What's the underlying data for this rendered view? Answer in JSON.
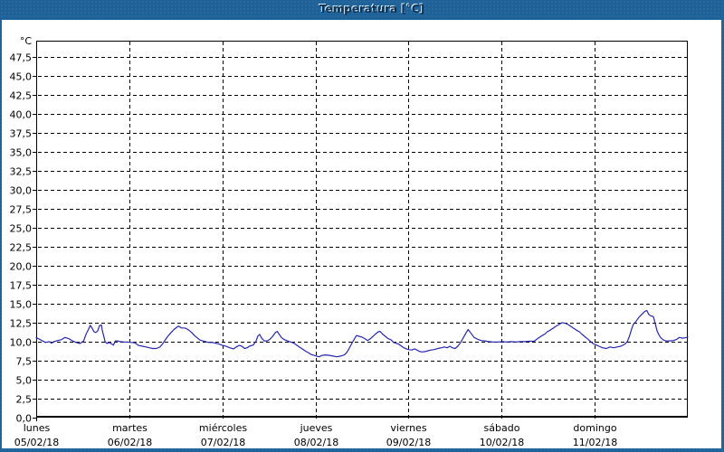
{
  "window": {
    "title": "Temperatura [°C]"
  },
  "colors": {
    "frame_blue": "#1e6299",
    "title_text": "#0c3254",
    "title_highlight": "#dcecf8",
    "content_bg": "#ffffff",
    "axis": "#000000",
    "grid": "#000000",
    "series_line": "#2626ac",
    "label_text": "#000000"
  },
  "chart_data": {
    "type": "line",
    "title": "Temperatura [°C]",
    "ylabel": "°C",
    "ylim": [
      0,
      49.6
    ],
    "y_tick_interval": 2.5,
    "grid": "dashed",
    "legend": "none",
    "y_ticks": [
      {
        "v": 0.0,
        "label": "0,0"
      },
      {
        "v": 2.5,
        "label": "2,5"
      },
      {
        "v": 5.0,
        "label": "5,0"
      },
      {
        "v": 7.5,
        "label": "7,5"
      },
      {
        "v": 10.0,
        "label": "10,0"
      },
      {
        "v": 12.5,
        "label": "12,5"
      },
      {
        "v": 15.0,
        "label": "15,0"
      },
      {
        "v": 17.5,
        "label": "17,5"
      },
      {
        "v": 20.0,
        "label": "20,0"
      },
      {
        "v": 22.5,
        "label": "22,5"
      },
      {
        "v": 25.0,
        "label": "25,0"
      },
      {
        "v": 27.5,
        "label": "27,5"
      },
      {
        "v": 30.0,
        "label": "30,0"
      },
      {
        "v": 32.5,
        "label": "32,5"
      },
      {
        "v": 35.0,
        "label": "35,0"
      },
      {
        "v": 37.5,
        "label": "37,5"
      },
      {
        "v": 40.0,
        "label": "40,0"
      },
      {
        "v": 42.5,
        "label": "42,5"
      },
      {
        "v": 45.0,
        "label": "45,0"
      },
      {
        "v": 47.5,
        "label": "47,5"
      }
    ],
    "x_days": [
      {
        "name": "lunes",
        "date": "05/02/18"
      },
      {
        "name": "martes",
        "date": "06/02/18"
      },
      {
        "name": "miércoles",
        "date": "07/02/18"
      },
      {
        "name": "jueves",
        "date": "08/02/18"
      },
      {
        "name": "viernes",
        "date": "09/02/18"
      },
      {
        "name": "sábado",
        "date": "10/02/18"
      },
      {
        "name": "domingo",
        "date": "11/02/18"
      }
    ],
    "series": [
      {
        "name": "Temperatura",
        "color": "#2626ac",
        "unit": "°C",
        "points": [
          [
            0,
            10.55
          ],
          [
            0.03,
            10.35
          ],
          [
            0.06,
            10.15
          ],
          [
            0.1,
            9.9
          ],
          [
            0.14,
            10.0
          ],
          [
            0.165,
            9.8
          ],
          [
            0.19,
            10.0
          ],
          [
            0.23,
            10.15
          ],
          [
            0.27,
            10.25
          ],
          [
            0.31,
            10.55
          ],
          [
            0.35,
            10.4
          ],
          [
            0.39,
            10.1
          ],
          [
            0.43,
            9.9
          ],
          [
            0.47,
            9.75
          ],
          [
            0.51,
            10.1
          ],
          [
            0.535,
            10.95
          ],
          [
            0.565,
            11.7
          ],
          [
            0.58,
            12.15
          ],
          [
            0.6,
            11.8
          ],
          [
            0.62,
            11.3
          ],
          [
            0.64,
            11.2
          ],
          [
            0.66,
            11.4
          ],
          [
            0.68,
            12.1
          ],
          [
            0.7,
            12.2
          ],
          [
            0.71,
            11.5
          ],
          [
            0.73,
            10.5
          ],
          [
            0.74,
            10.0
          ],
          [
            0.76,
            9.75
          ],
          [
            0.78,
            9.9
          ],
          [
            0.81,
            9.7
          ],
          [
            0.83,
            9.55
          ],
          [
            0.85,
            10.1
          ],
          [
            0.875,
            10.1
          ],
          [
            0.9,
            10.0
          ],
          [
            0.94,
            9.95
          ],
          [
            0.98,
            9.95
          ],
          [
            1.02,
            9.9
          ],
          [
            1.06,
            9.85
          ],
          [
            1.1,
            9.5
          ],
          [
            1.14,
            9.4
          ],
          [
            1.18,
            9.3
          ],
          [
            1.215,
            9.2
          ],
          [
            1.25,
            9.1
          ],
          [
            1.29,
            9.1
          ],
          [
            1.33,
            9.3
          ],
          [
            1.36,
            9.75
          ],
          [
            1.39,
            10.3
          ],
          [
            1.42,
            10.8
          ],
          [
            1.45,
            11.2
          ],
          [
            1.48,
            11.6
          ],
          [
            1.51,
            11.9
          ],
          [
            1.53,
            12.05
          ],
          [
            1.56,
            11.8
          ],
          [
            1.585,
            11.8
          ],
          [
            1.61,
            11.75
          ],
          [
            1.64,
            11.5
          ],
          [
            1.67,
            11.2
          ],
          [
            1.7,
            10.8
          ],
          [
            1.73,
            10.5
          ],
          [
            1.76,
            10.2
          ],
          [
            1.79,
            10.1
          ],
          [
            1.82,
            10.0
          ],
          [
            1.85,
            9.9
          ],
          [
            1.89,
            9.9
          ],
          [
            1.925,
            9.8
          ],
          [
            1.96,
            9.7
          ],
          [
            2.0,
            9.5
          ],
          [
            2.04,
            9.4
          ],
          [
            2.08,
            9.2
          ],
          [
            2.12,
            9.05
          ],
          [
            2.15,
            9.3
          ],
          [
            2.18,
            9.5
          ],
          [
            2.21,
            9.4
          ],
          [
            2.24,
            9.1
          ],
          [
            2.265,
            9.2
          ],
          [
            2.29,
            9.4
          ],
          [
            2.33,
            9.55
          ],
          [
            2.36,
            10.0
          ],
          [
            2.38,
            10.7
          ],
          [
            2.4,
            10.95
          ],
          [
            2.42,
            10.5
          ],
          [
            2.45,
            10.1
          ],
          [
            2.48,
            10.1
          ],
          [
            2.51,
            10.3
          ],
          [
            2.54,
            10.7
          ],
          [
            2.57,
            11.2
          ],
          [
            2.59,
            11.35
          ],
          [
            2.61,
            10.95
          ],
          [
            2.635,
            10.55
          ],
          [
            2.66,
            10.3
          ],
          [
            2.69,
            10.15
          ],
          [
            2.72,
            10.0
          ],
          [
            2.75,
            9.9
          ],
          [
            2.78,
            9.7
          ],
          [
            2.81,
            9.45
          ],
          [
            2.84,
            9.2
          ],
          [
            2.87,
            8.95
          ],
          [
            2.9,
            8.7
          ],
          [
            2.93,
            8.5
          ],
          [
            2.955,
            8.3
          ],
          [
            2.985,
            8.2
          ],
          [
            3.01,
            8.1
          ],
          [
            3.04,
            8.0
          ],
          [
            3.07,
            8.2
          ],
          [
            3.11,
            8.25
          ],
          [
            3.15,
            8.2
          ],
          [
            3.19,
            8.1
          ],
          [
            3.23,
            8.0
          ],
          [
            3.27,
            8.1
          ],
          [
            3.31,
            8.25
          ],
          [
            3.335,
            8.55
          ],
          [
            3.36,
            9.05
          ],
          [
            3.39,
            9.75
          ],
          [
            3.42,
            10.4
          ],
          [
            3.44,
            10.8
          ],
          [
            3.47,
            10.7
          ],
          [
            3.5,
            10.6
          ],
          [
            3.53,
            10.4
          ],
          [
            3.56,
            10.15
          ],
          [
            3.59,
            10.4
          ],
          [
            3.62,
            10.7
          ],
          [
            3.645,
            11.0
          ],
          [
            3.675,
            11.3
          ],
          [
            3.695,
            11.35
          ],
          [
            3.72,
            11.0
          ],
          [
            3.75,
            10.7
          ],
          [
            3.78,
            10.4
          ],
          [
            3.81,
            10.25
          ],
          [
            3.84,
            9.9
          ],
          [
            3.87,
            9.75
          ],
          [
            3.89,
            9.7
          ],
          [
            3.92,
            9.45
          ],
          [
            3.95,
            9.2
          ],
          [
            3.975,
            9.05
          ],
          [
            4.005,
            8.95
          ],
          [
            4.035,
            8.9
          ],
          [
            4.065,
            9.05
          ],
          [
            4.09,
            8.9
          ],
          [
            4.12,
            8.7
          ],
          [
            4.15,
            8.65
          ],
          [
            4.18,
            8.7
          ],
          [
            4.21,
            8.8
          ],
          [
            4.24,
            8.9
          ],
          [
            4.27,
            8.95
          ],
          [
            4.3,
            9.05
          ],
          [
            4.33,
            9.15
          ],
          [
            4.355,
            9.2
          ],
          [
            4.385,
            9.3
          ],
          [
            4.415,
            9.2
          ],
          [
            4.445,
            9.4
          ],
          [
            4.47,
            9.2
          ],
          [
            4.5,
            9.1
          ],
          [
            4.53,
            9.4
          ],
          [
            4.56,
            9.9
          ],
          [
            4.59,
            10.55
          ],
          [
            4.62,
            11.2
          ],
          [
            4.64,
            11.6
          ],
          [
            4.665,
            11.2
          ],
          [
            4.705,
            10.55
          ],
          [
            4.745,
            10.3
          ],
          [
            4.78,
            10.15
          ],
          [
            4.82,
            10.1
          ],
          [
            4.86,
            10.0
          ],
          [
            4.91,
            9.95
          ],
          [
            4.96,
            9.95
          ],
          [
            5.01,
            10.0
          ],
          [
            5.055,
            9.95
          ],
          [
            5.105,
            10.0
          ],
          [
            5.155,
            9.95
          ],
          [
            5.2,
            10.0
          ],
          [
            5.25,
            10.0
          ],
          [
            5.3,
            10.05
          ],
          [
            5.35,
            10.05
          ],
          [
            5.375,
            10.3
          ],
          [
            5.405,
            10.55
          ],
          [
            5.435,
            10.8
          ],
          [
            5.465,
            11.0
          ],
          [
            5.49,
            11.3
          ],
          [
            5.52,
            11.5
          ],
          [
            5.55,
            11.75
          ],
          [
            5.58,
            12.0
          ],
          [
            5.61,
            12.2
          ],
          [
            5.65,
            12.5
          ],
          [
            5.69,
            12.4
          ],
          [
            5.72,
            12.2
          ],
          [
            5.745,
            12.0
          ],
          [
            5.775,
            11.75
          ],
          [
            5.805,
            11.5
          ],
          [
            5.835,
            11.3
          ],
          [
            5.86,
            11.0
          ],
          [
            5.89,
            10.7
          ],
          [
            5.93,
            10.3
          ],
          [
            5.98,
            9.75
          ],
          [
            6.01,
            9.6
          ],
          [
            6.045,
            9.4
          ],
          [
            6.085,
            9.2
          ],
          [
            6.125,
            9.1
          ],
          [
            6.165,
            9.3
          ],
          [
            6.205,
            9.2
          ],
          [
            6.24,
            9.3
          ],
          [
            6.28,
            9.4
          ],
          [
            6.32,
            9.65
          ],
          [
            6.35,
            10.0
          ],
          [
            6.37,
            10.6
          ],
          [
            6.4,
            11.8
          ],
          [
            6.415,
            12.25
          ],
          [
            6.445,
            12.7
          ],
          [
            6.475,
            13.2
          ],
          [
            6.515,
            13.7
          ],
          [
            6.54,
            14.0
          ],
          [
            6.56,
            14.1
          ],
          [
            6.58,
            13.6
          ],
          [
            6.6,
            13.4
          ],
          [
            6.63,
            13.3
          ],
          [
            6.65,
            12.4
          ],
          [
            6.67,
            11.4
          ],
          [
            6.69,
            10.9
          ],
          [
            6.71,
            10.5
          ],
          [
            6.74,
            10.2
          ],
          [
            6.765,
            10.1
          ],
          [
            6.805,
            10.1
          ],
          [
            6.845,
            10.15
          ],
          [
            6.88,
            10.3
          ],
          [
            6.91,
            10.55
          ],
          [
            6.94,
            10.45
          ],
          [
            6.97,
            10.5
          ],
          [
            7.0,
            10.6
          ]
        ]
      }
    ]
  }
}
